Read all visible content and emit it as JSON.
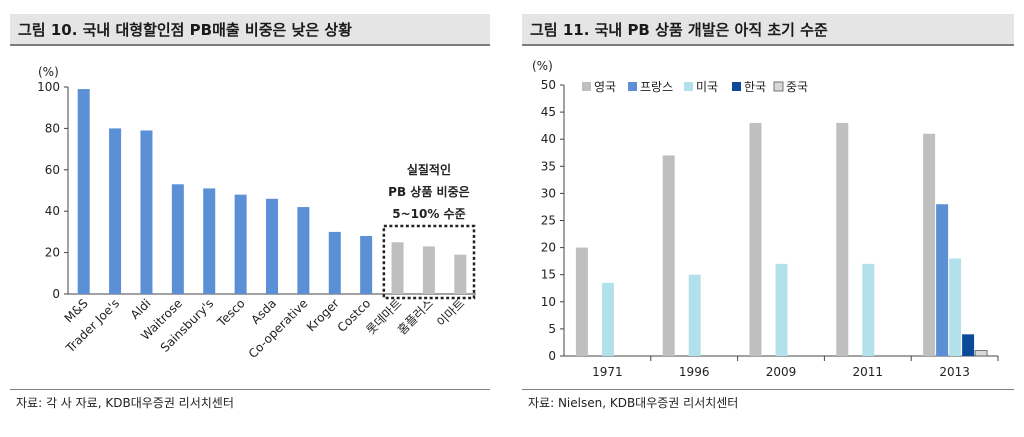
{
  "left": {
    "title": "그림 10. 국내 대형할인점 PB매출 비중은 낮은 상황",
    "source": "자료: 각 사 자료, KDB대우증권 리서치센터",
    "unit": "(%)",
    "annotation": [
      "실질적인",
      "PB 상품 비중은",
      "5~10% 수준"
    ]
  },
  "right": {
    "title": "그림 11. 국내 PB 상품 개발은 아직 초기 수준",
    "source": "자료: Nielsen, KDB대우증권 리서치센터",
    "unit": "(%)"
  },
  "colors": {
    "blue_bar": "#5b8fd6",
    "gray_bar": "#bfbfbf",
    "uk": "#bfbfbf",
    "france": "#5b8fd6",
    "usa": "#b3e1eb",
    "korea": "#0a4a99",
    "china": "#d9d9d9"
  },
  "chart_data": [
    {
      "type": "bar",
      "title": "",
      "ylabel": "(%)",
      "ylim": [
        0,
        100
      ],
      "yticks": [
        0,
        20,
        40,
        60,
        80,
        100
      ],
      "categories": [
        "M&S",
        "Trader Joe's",
        "Aldi",
        "Waitrose",
        "Sainsbury's",
        "Tesco",
        "Asda",
        "Co-operative",
        "Kroger",
        "Costco",
        "롯데마트",
        "홈플러스",
        "이마트"
      ],
      "values": [
        99,
        80,
        79,
        53,
        51,
        48,
        46,
        42,
        30,
        28,
        25,
        23,
        19
      ],
      "highlighted": [
        "롯데마트",
        "홈플러스",
        "이마트"
      ]
    },
    {
      "type": "bar",
      "title": "",
      "ylabel": "(%)",
      "ylim": [
        0,
        50
      ],
      "yticks": [
        0,
        5,
        10,
        15,
        20,
        25,
        30,
        35,
        40,
        45,
        50
      ],
      "categories": [
        "1971",
        "1996",
        "2009",
        "2011",
        "2013"
      ],
      "legend_position": "top-left",
      "series": [
        {
          "name": "영국",
          "values": [
            20,
            37,
            43,
            43,
            41
          ]
        },
        {
          "name": "프랑스",
          "values": [
            null,
            null,
            null,
            null,
            28
          ]
        },
        {
          "name": "미국",
          "values": [
            13.5,
            15,
            17,
            17,
            18
          ]
        },
        {
          "name": "한국",
          "values": [
            null,
            null,
            null,
            null,
            4
          ]
        },
        {
          "name": "중국",
          "values": [
            null,
            null,
            null,
            null,
            1
          ]
        }
      ]
    }
  ]
}
